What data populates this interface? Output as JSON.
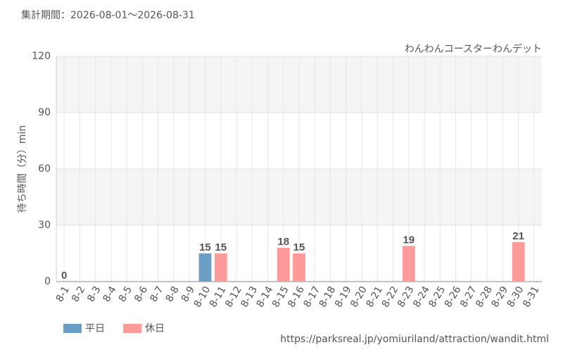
{
  "chart_data": {
    "type": "bar",
    "title": "集計期間：2026-08-01～2026-08-31",
    "subtitle": "わんわんコースターわんデット",
    "y_label": "待ち時間（分）min",
    "source": "https://parksreal.jp/yomiuriland/attraction/wandit.html",
    "categories": [
      "8-1",
      "8-2",
      "8-3",
      "8-4",
      "8-5",
      "8-6",
      "8-7",
      "8-8",
      "8-9",
      "8-10",
      "8-11",
      "8-12",
      "8-13",
      "8-14",
      "8-15",
      "8-16",
      "8-17",
      "8-18",
      "8-19",
      "8-20",
      "8-21",
      "8-22",
      "8-23",
      "8-24",
      "8-25",
      "8-26",
      "8-27",
      "8-28",
      "8-29",
      "8-30",
      "8-31"
    ],
    "category_colors": [
      "#f08080",
      "#f08080",
      "#555555",
      "#555555",
      "#555555",
      "#555555",
      "#555555",
      "#f08080",
      "#f08080",
      "#555555",
      "#f08080",
      "#555555",
      "#555555",
      "#555555",
      "#f08080",
      "#f08080",
      "#555555",
      "#555555",
      "#555555",
      "#555555",
      "#555555",
      "#f08080",
      "#f08080",
      "#555555",
      "#555555",
      "#555555",
      "#555555",
      "#555555",
      "#f08080",
      "#f08080",
      "#555555"
    ],
    "series": [
      {
        "name": "平日",
        "color": "#6a9ec5",
        "values": [
          null,
          null,
          null,
          null,
          null,
          null,
          null,
          null,
          null,
          15,
          null,
          null,
          null,
          null,
          null,
          null,
          null,
          null,
          null,
          null,
          null,
          null,
          null,
          null,
          null,
          null,
          null,
          null,
          null,
          null,
          null
        ]
      },
      {
        "name": "休日",
        "color": "#ff9a9a",
        "values": [
          0,
          null,
          null,
          null,
          null,
          null,
          null,
          null,
          null,
          null,
          15,
          null,
          null,
          null,
          18,
          15,
          null,
          null,
          null,
          null,
          null,
          null,
          19,
          null,
          null,
          null,
          null,
          null,
          null,
          21,
          null
        ]
      }
    ],
    "ylim": [
      0,
      120
    ],
    "yticks": [
      0,
      30,
      60,
      90,
      120
    ],
    "grid": true
  }
}
